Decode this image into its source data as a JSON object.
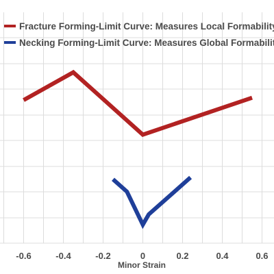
{
  "chart_data": {
    "type": "line",
    "title": "",
    "xlabel": "Minor Strain",
    "ylabel": "",
    "xlim": [
      -0.65,
      0.65
    ],
    "xticks": [
      -0.6,
      -0.4,
      -0.2,
      0,
      0.2,
      0.4,
      0.6
    ],
    "xtick_labels": [
      "-0.6",
      "-0.4",
      "-0.2",
      "0",
      "0.2",
      "0.4",
      "0.6"
    ],
    "ylim": [
      0,
      1
    ],
    "grid": true,
    "legend_position": "top-left",
    "series": [
      {
        "name": "Fracture Forming-Limit Curve: Measures Local Formability",
        "color": "#b22222",
        "x": [
          -0.6,
          -0.35,
          0,
          0.55
        ],
        "y": [
          0.62,
          0.74,
          0.47,
          0.63
        ]
      },
      {
        "name": "Necking Forming-Limit Curve: Measures Global Formability",
        "color": "#1f3f99",
        "x": [
          -0.15,
          -0.08,
          0,
          0.03,
          0.24
        ],
        "y": [
          0.277,
          0.223,
          0.08,
          0.125,
          0.285
        ]
      }
    ]
  }
}
